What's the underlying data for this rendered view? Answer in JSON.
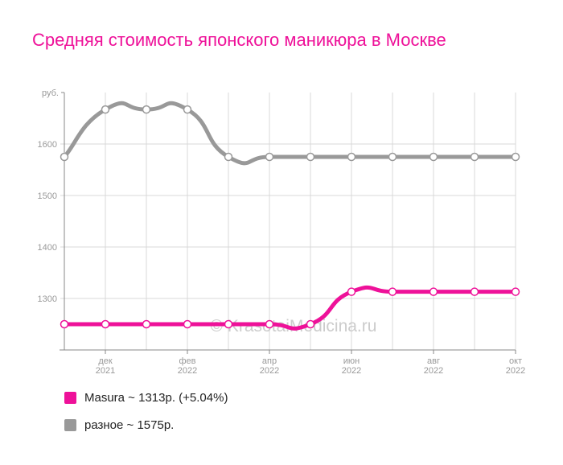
{
  "title": "Средняя стоимость японского маникюра в Москве",
  "watermark": "© KrasotaiMedicina.ru",
  "chart_data": {
    "type": "line",
    "title": "Средняя стоимость японского маникюра в Москве",
    "xlabel": "",
    "ylabel": "руб.",
    "ylim": [
      1200,
      1700
    ],
    "yticks": [
      1300,
      1400,
      1500,
      1600
    ],
    "x": [
      "ноя 2021",
      "дек 2021",
      "янв 2022",
      "фев 2022",
      "мар 2022",
      "апр 2022",
      "май 2022",
      "июн 2022",
      "июл 2022",
      "авг 2022",
      "сен 2022",
      "окт 2022"
    ],
    "xtick_labels": [
      {
        "index": 1,
        "month": "дек",
        "year": "2021"
      },
      {
        "index": 3,
        "month": "фев",
        "year": "2022"
      },
      {
        "index": 5,
        "month": "апр",
        "year": "2022"
      },
      {
        "index": 7,
        "month": "июн",
        "year": "2022"
      },
      {
        "index": 9,
        "month": "авг",
        "year": "2022"
      },
      {
        "index": 11,
        "month": "окт",
        "year": "2022"
      }
    ],
    "grid": true,
    "legend_position": "bottom",
    "series": [
      {
        "name": "Masura",
        "color": "#ee1199",
        "values": [
          1250,
          1250,
          1250,
          1250,
          1250,
          1250,
          1250,
          1313,
          1313,
          1313,
          1313,
          1313
        ]
      },
      {
        "name": "разное",
        "color": "#999999",
        "values": [
          1575,
          1667,
          1667,
          1667,
          1575,
          1575,
          1575,
          1575,
          1575,
          1575,
          1575,
          1575
        ]
      }
    ]
  },
  "legend": [
    {
      "label": "Masura ~ 1313р. (+5.04%)",
      "color": "#ee1199"
    },
    {
      "label": "разное ~ 1575р.",
      "color": "#999999"
    }
  ]
}
